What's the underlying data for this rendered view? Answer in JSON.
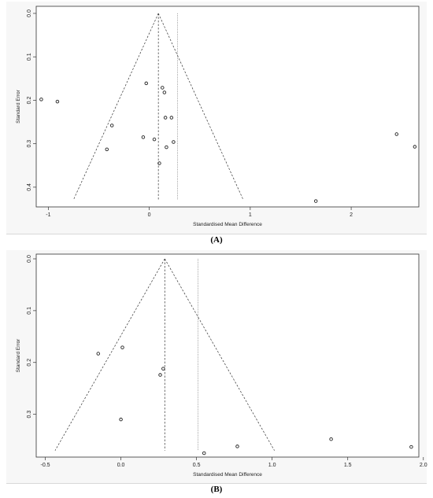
{
  "chart_data": [
    {
      "type": "scatter",
      "panel_label": "(A)",
      "xlabel": "Standardised Mean Difference",
      "ylabel": "Standard Error",
      "xlim": [
        -1.12,
        2.67
      ],
      "ylim": [
        0,
        0.44
      ],
      "y_reversed": true,
      "x_ticks": [
        -1,
        0,
        1,
        2
      ],
      "y_ticks": [
        0.0,
        0.1,
        0.2,
        0.3,
        0.4
      ],
      "y_tick_labels": [
        "0.0",
        "0.1",
        "0.2",
        "0.3",
        "0.4"
      ],
      "funnel_center": 0.09,
      "funnel_bottom_se": 0.43,
      "adjusted_line": 0.28,
      "points": [
        {
          "x": -1.07,
          "y": 0.198
        },
        {
          "x": -0.91,
          "y": 0.203
        },
        {
          "x": -0.37,
          "y": 0.258
        },
        {
          "x": -0.42,
          "y": 0.313
        },
        {
          "x": -0.06,
          "y": 0.285
        },
        {
          "x": -0.03,
          "y": 0.161
        },
        {
          "x": 0.05,
          "y": 0.29
        },
        {
          "x": 0.1,
          "y": 0.345
        },
        {
          "x": 0.13,
          "y": 0.171
        },
        {
          "x": 0.15,
          "y": 0.182
        },
        {
          "x": 0.16,
          "y": 0.24
        },
        {
          "x": 0.17,
          "y": 0.308
        },
        {
          "x": 0.22,
          "y": 0.24
        },
        {
          "x": 0.24,
          "y": 0.296
        },
        {
          "x": 1.65,
          "y": 0.432
        },
        {
          "x": 2.45,
          "y": 0.278
        },
        {
          "x": 2.63,
          "y": 0.307
        }
      ]
    },
    {
      "type": "scatter",
      "panel_label": "(B)",
      "xlabel": "Standardised Mean Difference",
      "ylabel": "Standard Error",
      "xlim": [
        -0.56,
        1.97
      ],
      "ylim": [
        0,
        0.375
      ],
      "y_reversed": true,
      "x_ticks": [
        -0.5,
        0.0,
        0.5,
        1.0,
        1.5,
        2.0
      ],
      "x_tick_labels": [
        "-0.5",
        "0.0",
        "0.5",
        "1.0",
        "1.5",
        "2.0"
      ],
      "y_ticks": [
        0.0,
        0.1,
        0.2,
        0.3
      ],
      "y_tick_labels": [
        "0.0",
        "0.1",
        "0.2",
        "0.3"
      ],
      "funnel_center": 0.29,
      "funnel_bottom_se": 0.37,
      "adjusted_line": 0.51,
      "points": [
        {
          "x": -0.15,
          "y": 0.183
        },
        {
          "x": 0.01,
          "y": 0.171
        },
        {
          "x": 0.0,
          "y": 0.31
        },
        {
          "x": 0.26,
          "y": 0.224
        },
        {
          "x": 0.28,
          "y": 0.212
        },
        {
          "x": 0.55,
          "y": 0.375
        },
        {
          "x": 0.77,
          "y": 0.362
        },
        {
          "x": 1.39,
          "y": 0.348
        },
        {
          "x": 1.92,
          "y": 0.363
        }
      ]
    }
  ]
}
